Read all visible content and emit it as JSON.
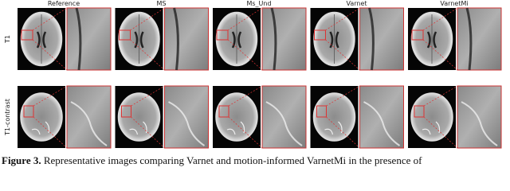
{
  "columns": [
    "Reference",
    "MS",
    "Ms_Und",
    "Varnet",
    "VarnetMi"
  ],
  "rows": [
    "T1",
    "T1-contrast"
  ],
  "caption": {
    "label": "Figure 3.",
    "text": "Representative images comparing Varnet and motion-informed VarnetMi in the presence of"
  }
}
